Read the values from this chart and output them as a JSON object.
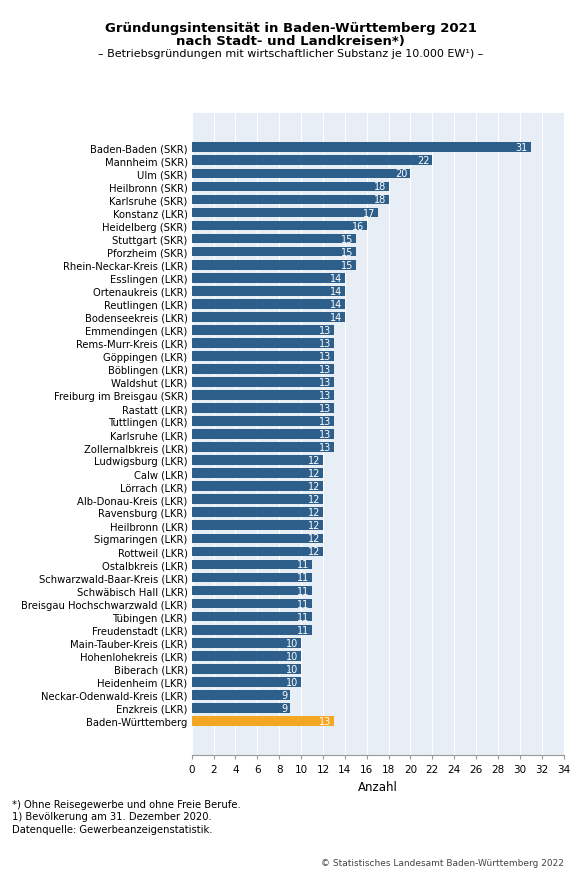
{
  "title_line1": "Gründungsintensität in Baden-Württemberg 2021",
  "title_line2": "nach Stadt- und Landkreisen*)",
  "subtitle": "– Betriebsgründungen mit wirtschaftlicher Substanz je 10.000 EW¹) –",
  "xlabel": "Anzahl",
  "footnote1": "*) Ohne Reisegewerbe und ohne Freie Berufe.",
  "footnote2": "1) Bevölkerung am 31. Dezember 2020.",
  "footnote3": "Datenquelle: Gewerbeanzeigenstatistik.",
  "copyright": "© Statistisches Landesamt Baden-Württemberg 2022",
  "xlim": [
    0,
    34
  ],
  "xticks": [
    0,
    2,
    4,
    6,
    8,
    10,
    12,
    14,
    16,
    18,
    20,
    22,
    24,
    26,
    28,
    30,
    32,
    34
  ],
  "bar_color_blue": "#2E5F8A",
  "bar_color_orange": "#F5A623",
  "background_color": "#E8EEF5",
  "categories": [
    "Baden-Baden (SKR)",
    "Mannheim (SKR)",
    "Ulm (SKR)",
    "Heilbronn (SKR)",
    "Karlsruhe (SKR)",
    "Konstanz (LKR)",
    "Heidelberg (SKR)",
    "Stuttgart (SKR)",
    "Pforzheim (SKR)",
    "Rhein-Neckar-Kreis (LKR)",
    "Esslingen (LKR)",
    "Ortenaukreis (LKR)",
    "Reutlingen (LKR)",
    "Bodenseekreis (LKR)",
    "Emmendingen (LKR)",
    "Rems-Murr-Kreis (LKR)",
    "Göppingen (LKR)",
    "Böblingen (LKR)",
    "Waldshut (LKR)",
    "Freiburg im Breisgau (SKR)",
    "Rastatt (LKR)",
    "Tuttlingen (LKR)",
    "Karlsruhe (LKR)",
    "Zollernalbkreis (LKR)",
    "Ludwigsburg (LKR)",
    "Calw (LKR)",
    "Lörrach (LKR)",
    "Alb-Donau-Kreis (LKR)",
    "Ravensburg (LKR)",
    "Heilbronn (LKR)",
    "Sigmaringen (LKR)",
    "Rottweil (LKR)",
    "Ostalbkreis (LKR)",
    "Schwarzwald-Baar-Kreis (LKR)",
    "Schwäbisch Hall (LKR)",
    "Breisgau Hochschwarzwald (LKR)",
    "Tübingen (LKR)",
    "Freudenstadt (LKR)",
    "Main-Tauber-Kreis (LKR)",
    "Hohenlohekreis (LKR)",
    "Biberach (LKR)",
    "Heidenheim (LKR)",
    "Neckar-Odenwald-Kreis (LKR)",
    "Enzkreis (LKR)",
    "Baden-Württemberg"
  ],
  "values": [
    31,
    22,
    20,
    18,
    18,
    17,
    16,
    15,
    15,
    15,
    14,
    14,
    14,
    14,
    13,
    13,
    13,
    13,
    13,
    13,
    13,
    13,
    13,
    13,
    12,
    12,
    12,
    12,
    12,
    12,
    12,
    12,
    11,
    11,
    11,
    11,
    11,
    11,
    10,
    10,
    10,
    10,
    9,
    9,
    13
  ],
  "is_orange": [
    false,
    false,
    false,
    false,
    false,
    false,
    false,
    false,
    false,
    false,
    false,
    false,
    false,
    false,
    false,
    false,
    false,
    false,
    false,
    false,
    false,
    false,
    false,
    false,
    false,
    false,
    false,
    false,
    false,
    false,
    false,
    false,
    false,
    false,
    false,
    false,
    false,
    false,
    false,
    false,
    false,
    false,
    false,
    false,
    true
  ]
}
